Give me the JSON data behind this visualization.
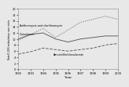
{
  "years": [
    1992,
    1993,
    1994,
    1995,
    1996,
    1997,
    1998,
    1999,
    2000
  ],
  "azithro_clarithro": [
    9.5,
    11.5,
    13.5,
    10.5,
    13,
    15.5,
    16.5,
    17.5,
    16.5
  ],
  "quinolones": [
    10,
    11.5,
    12,
    10,
    9,
    10,
    10.5,
    11,
    11
  ],
  "amoxiclav": [
    5,
    5.8,
    7,
    6.5,
    6,
    6.5,
    7,
    8,
    8.5
  ],
  "ylim": [
    0,
    20
  ],
  "yticks": [
    0,
    2,
    4,
    6,
    8,
    10,
    12,
    14,
    16,
    18,
    20
  ],
  "xlabel": "Year",
  "ylabel": "Rate/1,000 ambulatory care visits",
  "label_azithro": "Azithromycin and clarithromycin",
  "label_quinolones": "Quinolones",
  "label_amoxiclav": "Amoxicillin/clavulanate",
  "color": "#606060",
  "bg_color": "#e8e8e8"
}
